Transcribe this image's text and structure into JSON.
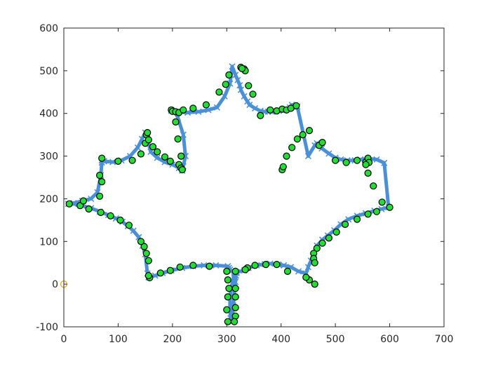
{
  "chart_data": {
    "type": "scatter",
    "title": "",
    "xlabel": "",
    "ylabel": "",
    "xlim": [
      0,
      700
    ],
    "ylim": [
      -100,
      600
    ],
    "xticks": [
      0,
      100,
      200,
      300,
      400,
      500,
      600,
      700
    ],
    "yticks": [
      -100,
      0,
      100,
      200,
      300,
      400,
      500,
      600
    ],
    "xtick_labels": [
      "0",
      "100",
      "200",
      "300",
      "400",
      "500",
      "600",
      "700"
    ],
    "ytick_labels": [
      "-100",
      "0",
      "100",
      "200",
      "300",
      "400",
      "500",
      "600"
    ],
    "grid": false,
    "box": true,
    "colors": {
      "axis": "#262626",
      "line": "#4a90d9",
      "marker_fill": "#22dd33",
      "marker_edge": "#000000",
      "origin_marker": "#f0a020"
    },
    "series": [
      {
        "marker": "cross",
        "style": "dense-line",
        "x": [
          310,
          316,
          320,
          324,
          326,
          332,
          338,
          342,
          352,
          362,
          370,
          376,
          384,
          390,
          396,
          402,
          410,
          416,
          420,
          430,
          450,
          462,
          466,
          475,
          488,
          500,
          510,
          522,
          536,
          546,
          560,
          576,
          590,
          598,
          585,
          572,
          556,
          540,
          524,
          510,
          498,
          486,
          476,
          466,
          460,
          455,
          450,
          446,
          432,
          418,
          405,
          395,
          380,
          370,
          355,
          340,
          332,
          318,
          317,
          316,
          314,
          312,
          310,
          307,
          306,
          306,
          308,
          314,
          318,
          314,
          308,
          306,
          304,
          302,
          280,
          258,
          238,
          218,
          198,
          182,
          168,
          156,
          154,
          150,
          145,
          138,
          128,
          118,
          108,
          96,
          82,
          66,
          50,
          34,
          18,
          8,
          18,
          34,
          50,
          62,
          68,
          70,
          70,
          70,
          74,
          90,
          106,
          122,
          136,
          144,
          150,
          154,
          156,
          160,
          172,
          186,
          200,
          212,
          218,
          220,
          224,
          220,
          210,
          204,
          198,
          198,
          210,
          228,
          248,
          266,
          282,
          296,
          306
        ],
        "y": [
          510,
          490,
          478,
          466,
          455,
          440,
          428,
          420,
          412,
          406,
          404,
          404,
          404,
          405,
          406,
          408,
          410,
          414,
          420,
          416,
          300,
          325,
          330,
          318,
          306,
          296,
          292,
          290,
          290,
          292,
          294,
          292,
          284,
          180,
          176,
          172,
          166,
          160,
          152,
          140,
          126,
          114,
          104,
          90,
          70,
          55,
          40,
          25,
          30,
          40,
          44,
          46,
          48,
          47,
          44,
          38,
          32,
          28,
          20,
          5,
          -20,
          -50,
          -88,
          -80,
          -60,
          -30,
          -10,
          25,
          26,
          28,
          30,
          34,
          38,
          42,
          44,
          44,
          42,
          38,
          32,
          26,
          20,
          16,
          25,
          70,
          90,
          110,
          125,
          136,
          146,
          154,
          162,
          170,
          178,
          184,
          188,
          188,
          190,
          195,
          200,
          215,
          255,
          285,
          290,
          290,
          288,
          286,
          290,
          300,
          320,
          340,
          355,
          350,
          330,
          310,
          296,
          286,
          280,
          272,
          266,
          276,
          300,
          350,
          390,
          404,
          406,
          408,
          404,
          402,
          404,
          408,
          414,
          440,
          470
        ]
      },
      {
        "marker": "circle",
        "style": "markers",
        "x": [
          332,
          334,
          340,
          348,
          362,
          380,
          392,
          402,
          410,
          418,
          428,
          402,
          404,
          410,
          420,
          430,
          440,
          452,
          470,
          476,
          500,
          520,
          540,
          556,
          560,
          562,
          556,
          560,
          570,
          586,
          600,
          576,
          560,
          540,
          518,
          502,
          488,
          476,
          466,
          460,
          460,
          462,
          462,
          452,
          446,
          412,
          392,
          372,
          352,
          338,
          334,
          316,
          316,
          316,
          316,
          316,
          314,
          302,
          300,
          302,
          304,
          302,
          300,
          268,
          238,
          214,
          196,
          178,
          158,
          156,
          156,
          152,
          148,
          142,
          120,
          104,
          86,
          68,
          46,
          30,
          10,
          36,
          66,
          66,
          70,
          70,
          100,
          126,
          142,
          150,
          152,
          154,
          156,
          164,
          172,
          186,
          196,
          212,
          216,
          218,
          216,
          210,
          206,
          198,
          200,
          206,
          212,
          220,
          238,
          262,
          286,
          298,
          304,
          326,
          328
        ],
        "y": [
          504,
          500,
          465,
          445,
          395,
          408,
          406,
          410,
          408,
          412,
          418,
          268,
          275,
          300,
          320,
          340,
          350,
          360,
          325,
          332,
          290,
          285,
          290,
          286,
          295,
          285,
          280,
          260,
          230,
          192,
          180,
          170,
          164,
          152,
          140,
          122,
          108,
          96,
          84,
          72,
          60,
          50,
          0,
          10,
          16,
          30,
          46,
          46,
          44,
          38,
          34,
          30,
          -10,
          -30,
          -55,
          -75,
          -88,
          -88,
          -60,
          -30,
          -10,
          10,
          30,
          42,
          44,
          40,
          32,
          26,
          15,
          20,
          55,
          72,
          88,
          100,
          138,
          150,
          160,
          168,
          176,
          184,
          188,
          195,
          206,
          255,
          240,
          295,
          288,
          290,
          305,
          330,
          350,
          355,
          338,
          322,
          310,
          298,
          288,
          280,
          272,
          268,
          300,
          340,
          380,
          408,
          405,
          404,
          402,
          408,
          412,
          420,
          450,
          468,
          490,
          508,
          505
        ]
      },
      {
        "marker": "circle",
        "style": "origin",
        "x": [
          0
        ],
        "y": [
          0
        ]
      }
    ]
  }
}
